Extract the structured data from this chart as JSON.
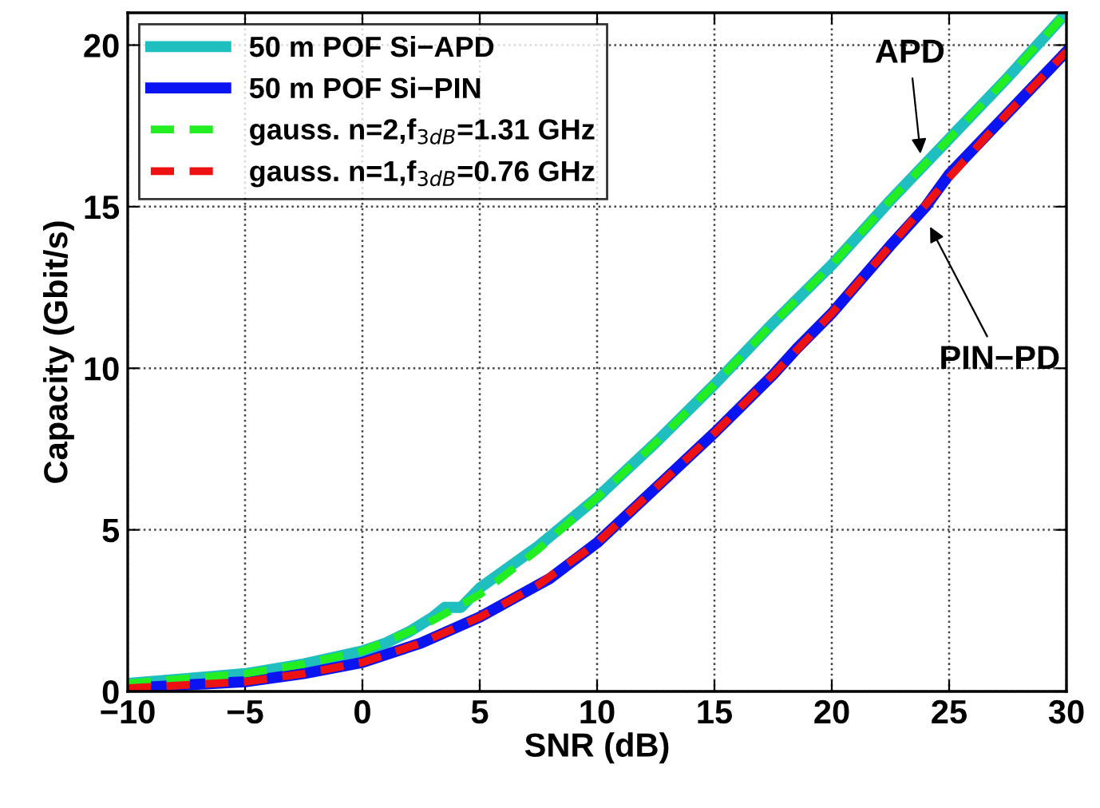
{
  "chart_data": {
    "type": "line",
    "xlabel": "SNR (dB)",
    "ylabel": "Capacity (Gbit/s)",
    "xlim": [
      -10,
      30
    ],
    "ylim": [
      0,
      21
    ],
    "xticks": [
      {
        "value": -10,
        "label": "−10"
      },
      {
        "value": -5,
        "label": "−5"
      },
      0,
      5,
      10,
      15,
      20,
      25,
      30
    ],
    "yticks": [
      0,
      5,
      10,
      15,
      20
    ],
    "grid": true,
    "legend": "top left",
    "line_style": "solid",
    "series": [
      {
        "name": "50 m POF Si−APD",
        "color": "#1fbfbf",
        "x": [
          -10,
          -7.5,
          -5,
          -2.5,
          0,
          1,
          2,
          3,
          3.5,
          4.2,
          5,
          7.5,
          10,
          12.5,
          15,
          17.5,
          20,
          22.5,
          25,
          27.5,
          30
        ],
        "values": [
          0.25,
          0.4,
          0.55,
          0.85,
          1.25,
          1.5,
          1.85,
          2.3,
          2.6,
          2.6,
          3.2,
          4.5,
          6.0,
          7.7,
          9.5,
          11.4,
          13.2,
          15.2,
          17.1,
          19.0,
          21.0
        ]
      },
      {
        "name": "50 m POF Si−PIN",
        "color": "#0a14f0",
        "x": [
          -10,
          -7.5,
          -5,
          -2.5,
          0,
          2.5,
          5,
          7,
          8,
          10,
          12.5,
          15,
          17.5,
          18.5,
          20,
          22.5,
          23.5,
          24,
          25,
          27.5,
          30
        ],
        "values": [
          0.1,
          0.2,
          0.3,
          0.55,
          0.9,
          1.5,
          2.3,
          3.1,
          3.5,
          4.6,
          6.3,
          8.0,
          9.8,
          10.6,
          11.7,
          13.8,
          14.6,
          15.0,
          16.0,
          17.9,
          19.8
        ]
      },
      {
        "name": "gauss. n=2,f$_{3dB}$=1.31 GHz",
        "color": "#22ee22",
        "line_style": "dashed",
        "x": [
          -10,
          -7.5,
          -5,
          -2.5,
          0,
          2.5,
          5,
          7.5,
          10,
          12.5,
          15,
          17.5,
          20,
          22.5,
          25,
          27.5,
          30
        ],
        "values": [
          0.25,
          0.4,
          0.55,
          0.85,
          1.25,
          2.0,
          3.0,
          4.4,
          6.0,
          7.7,
          9.5,
          11.4,
          13.2,
          15.2,
          17.1,
          19.0,
          21.0
        ]
      },
      {
        "name": "gauss. n=1,f$_{3dB}$=0.76 GHz",
        "color": "#ee1111",
        "line_style": "dashed",
        "x": [
          -10,
          -7.5,
          -5,
          -2.5,
          0,
          2.5,
          5,
          7.5,
          10,
          12.5,
          15,
          17.5,
          20,
          22.5,
          25,
          27.5,
          30
        ],
        "values": [
          0.1,
          0.2,
          0.3,
          0.55,
          0.9,
          1.5,
          2.3,
          3.3,
          4.6,
          6.3,
          8.0,
          9.8,
          11.7,
          13.8,
          15.9,
          17.9,
          19.8
        ]
      }
    ],
    "annotations": [
      {
        "text": "APD",
        "x": 23.8,
        "y": 16.5
      },
      {
        "text": "PIN−PD",
        "x": 24.1,
        "y": 14.5
      }
    ]
  }
}
